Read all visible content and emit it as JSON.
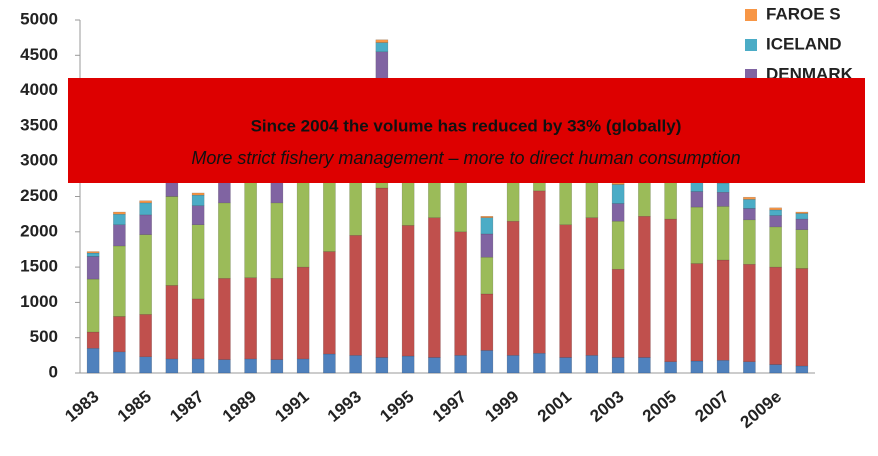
{
  "chart_data": {
    "type": "stacked_bar",
    "categories": [
      "1983",
      null,
      "1985",
      null,
      "1987",
      null,
      "1989",
      null,
      "1991",
      null,
      "1993",
      null,
      "1995",
      null,
      "1997",
      null,
      "1999",
      null,
      "2001",
      null,
      "2003",
      null,
      "2005",
      null,
      "2007",
      null,
      "2009e",
      null
    ],
    "series": [
      {
        "color": "#4f81bd",
        "values": [
          350,
          300,
          230,
          200,
          200,
          190,
          200,
          190,
          200,
          270,
          250,
          220,
          240,
          220,
          250,
          320,
          250,
          280,
          220,
          250,
          220,
          220,
          160,
          170,
          180,
          160,
          120,
          100
        ]
      },
      {
        "color": "#c0504d",
        "values": [
          230,
          500,
          600,
          1040,
          850,
          1150,
          1150,
          1150,
          1300,
          1450,
          1700,
          2400,
          1850,
          1980,
          1750,
          800,
          1900,
          2300,
          1880,
          1950,
          1250,
          2000,
          2020,
          1380,
          1420,
          1380,
          1380,
          1380
        ]
      },
      {
        "color": "#9bbb59",
        "values": [
          750,
          1000,
          1130,
          1260,
          1050,
          1070,
          1350,
          1070,
          1300,
          1100,
          900,
          200,
          700,
          600,
          800,
          520,
          600,
          150,
          700,
          600,
          680,
          550,
          550,
          800,
          760,
          630,
          570,
          550
        ]
      },
      {
        "name": "DENMARK",
        "color": "#8064a2",
        "values": [
          320,
          300,
          280,
          300,
          270,
          300,
          250,
          300,
          250,
          250,
          250,
          1730,
          300,
          300,
          250,
          330,
          300,
          300,
          250,
          250,
          250,
          250,
          250,
          220,
          200,
          160,
          160,
          150
        ]
      },
      {
        "name": "ICELAND",
        "color": "#4bacc6",
        "values": [
          50,
          150,
          170,
          100,
          150,
          100,
          100,
          120,
          100,
          100,
          100,
          130,
          150,
          100,
          100,
          230,
          100,
          100,
          100,
          100,
          270,
          100,
          100,
          130,
          130,
          130,
          80,
          80
        ]
      },
      {
        "name": "FAROE S",
        "color": "#f79646",
        "values": [
          20,
          30,
          30,
          20,
          30,
          20,
          20,
          20,
          20,
          20,
          20,
          40,
          20,
          20,
          20,
          20,
          20,
          20,
          20,
          20,
          30,
          20,
          20,
          20,
          20,
          30,
          30,
          20
        ]
      }
    ],
    "ylim": [
      0,
      5000
    ],
    "yticks": [
      0,
      500,
      1000,
      1500,
      2000,
      2500,
      3000,
      3500,
      4000,
      4500,
      5000
    ],
    "grid": false,
    "legend": "top-right",
    "annotations": [
      "Since 2004 the volume has reduced by 33% (globally)",
      "More strict fishery management – more to direct human consumption"
    ],
    "annotation_color": "#dd0000"
  }
}
